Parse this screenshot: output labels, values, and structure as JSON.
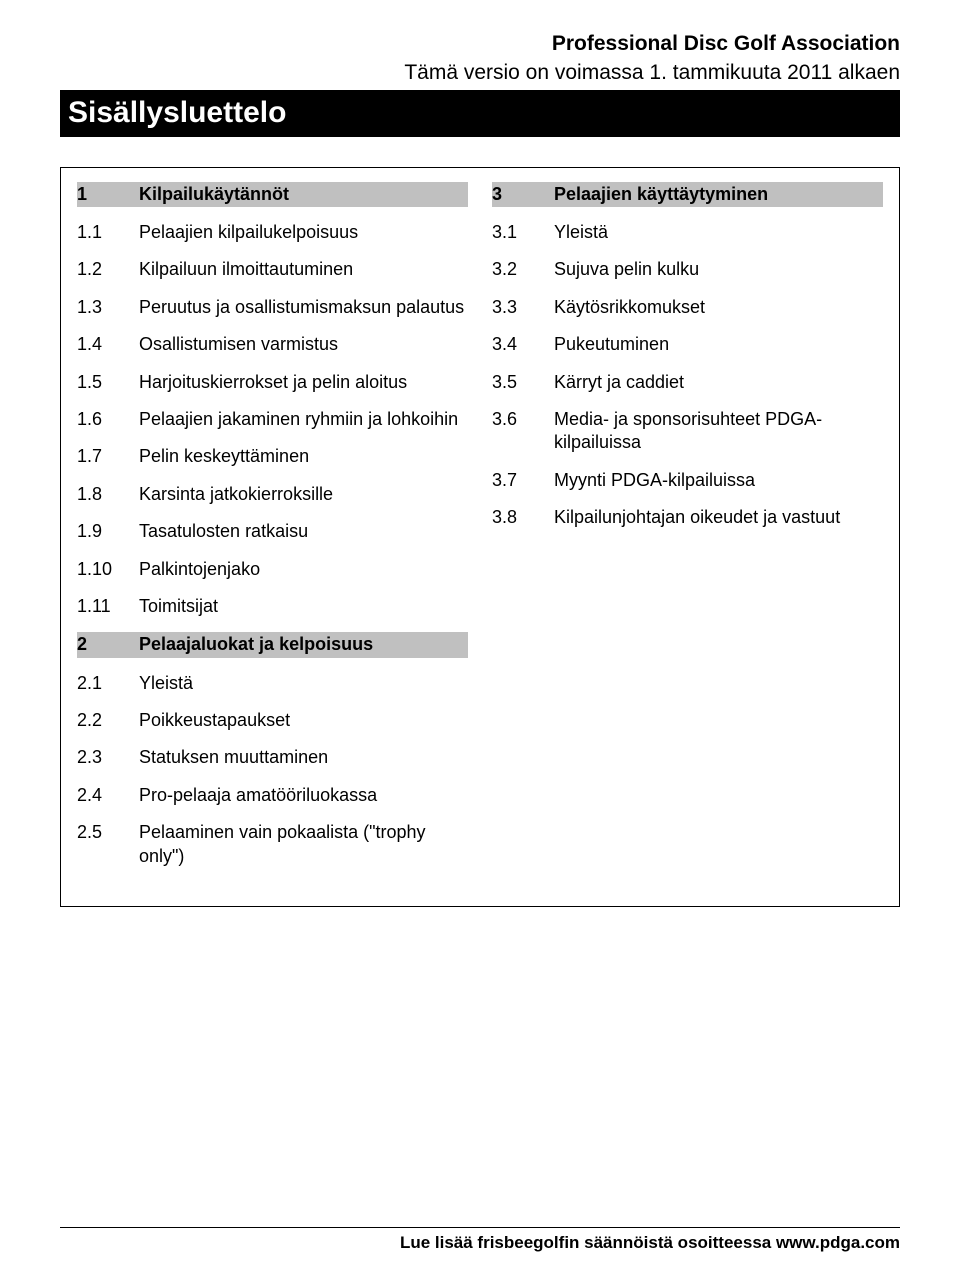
{
  "header": {
    "association": "Professional Disc Golf Association",
    "version": "Tämä versio on voimassa 1. tammikuuta 2011 alkaen",
    "title": "Sisällysluettelo"
  },
  "left": {
    "items": [
      {
        "num": "1",
        "txt": "Kilpailukäytännöt",
        "section": true
      },
      {
        "num": "1.1",
        "txt": "Pelaajien kilpailukelpoisuus"
      },
      {
        "num": "1.2",
        "txt": "Kilpailuun ilmoittautuminen"
      },
      {
        "num": "1.3",
        "txt": "Peruutus ja osallistumismaksun palautus"
      },
      {
        "num": "1.4",
        "txt": "Osallistumisen varmistus"
      },
      {
        "num": "1.5",
        "txt": "Harjoituskierrokset ja pelin aloitus"
      },
      {
        "num": "1.6",
        "txt": "Pelaajien jakaminen ryhmiin ja lohkoihin"
      },
      {
        "num": "1.7",
        "txt": "Pelin keskeyttäminen"
      },
      {
        "num": "1.8",
        "txt": "Karsinta jatkokierroksille"
      },
      {
        "num": "1.9",
        "txt": "Tasatulosten ratkaisu"
      },
      {
        "num": "1.10",
        "txt": "Palkintojenjako"
      },
      {
        "num": "1.11",
        "txt": "Toimitsijat"
      },
      {
        "num": "2",
        "txt": "Pelaajaluokat ja kelpoisuus",
        "section": true
      },
      {
        "num": "2.1",
        "txt": "Yleistä"
      },
      {
        "num": "2.2",
        "txt": "Poikkeustapaukset"
      },
      {
        "num": "2.3",
        "txt": "Statuksen muuttaminen"
      },
      {
        "num": "2.4",
        "txt": "Pro-pelaaja amatööriluokassa"
      },
      {
        "num": "2.5",
        "txt": "Pelaaminen vain pokaalista (\"trophy only\")"
      }
    ]
  },
  "right": {
    "items": [
      {
        "num": "3",
        "txt": "Pelaajien käyttäytyminen",
        "section": true
      },
      {
        "num": "3.1",
        "txt": "Yleistä"
      },
      {
        "num": "3.2",
        "txt": "Sujuva pelin kulku"
      },
      {
        "num": "3.3",
        "txt": "Käytösrikkomukset"
      },
      {
        "num": "3.4",
        "txt": "Pukeutuminen"
      },
      {
        "num": "3.5",
        "txt": "Kärryt ja caddiet"
      },
      {
        "num": "3.6",
        "txt": "Media- ja sponsorisuhteet PDGA-kilpailuissa"
      },
      {
        "num": "3.7",
        "txt": "Myynti PDGA-kilpailuissa"
      },
      {
        "num": "3.8",
        "txt": "Kilpailunjohtajan oikeudet ja vastuut"
      }
    ]
  },
  "footer": "Lue lisää frisbeegolfin säännöistä osoitteessa www.pdga.com"
}
